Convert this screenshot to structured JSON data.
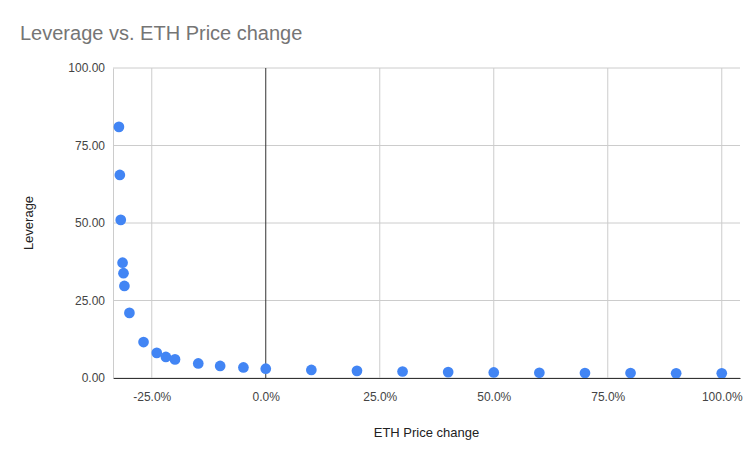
{
  "chart_data": {
    "type": "scatter",
    "title": "Leverage vs. ETH Price change",
    "x_label": "ETH Price change",
    "y_label": "Leverage",
    "x": [
      -32.2,
      -32.0,
      -31.8,
      -31.4,
      -31.2,
      -31.0,
      -29.9,
      -26.8,
      -23.9,
      -21.9,
      -19.9,
      -14.8,
      -10.0,
      -4.9,
      0,
      10,
      20,
      30,
      40,
      50,
      60,
      70,
      80,
      90,
      100
    ],
    "values": [
      81,
      65.5,
      51,
      37.2,
      33.8,
      29.7,
      21,
      11.6,
      8.1,
      6.8,
      6.0,
      4.7,
      3.9,
      3.4,
      3.0,
      2.6,
      2.3,
      2.1,
      1.9,
      1.8,
      1.7,
      1.6,
      1.6,
      1.5,
      1.5
    ],
    "color": "#4285f4",
    "marker": "circle",
    "grid": true,
    "xlim": [
      -33.5,
      104
    ],
    "xticks": [
      {
        "value": -25,
        "label": "-25.0%"
      },
      {
        "value": 0,
        "label": "0.0%"
      },
      {
        "value": 25,
        "label": "25.0%"
      },
      {
        "value": 50,
        "label": "50.0%"
      },
      {
        "value": 75,
        "label": "75.0%"
      },
      {
        "value": 100,
        "label": "100.0%"
      }
    ],
    "ylim": [
      0,
      100
    ],
    "yticks": [
      {
        "value": 0,
        "label": "0.00"
      },
      {
        "value": 25,
        "label": "25.00"
      },
      {
        "value": 50,
        "label": "50.00"
      },
      {
        "value": 75,
        "label": "75.00"
      },
      {
        "value": 100,
        "label": "100.00"
      }
    ]
  }
}
